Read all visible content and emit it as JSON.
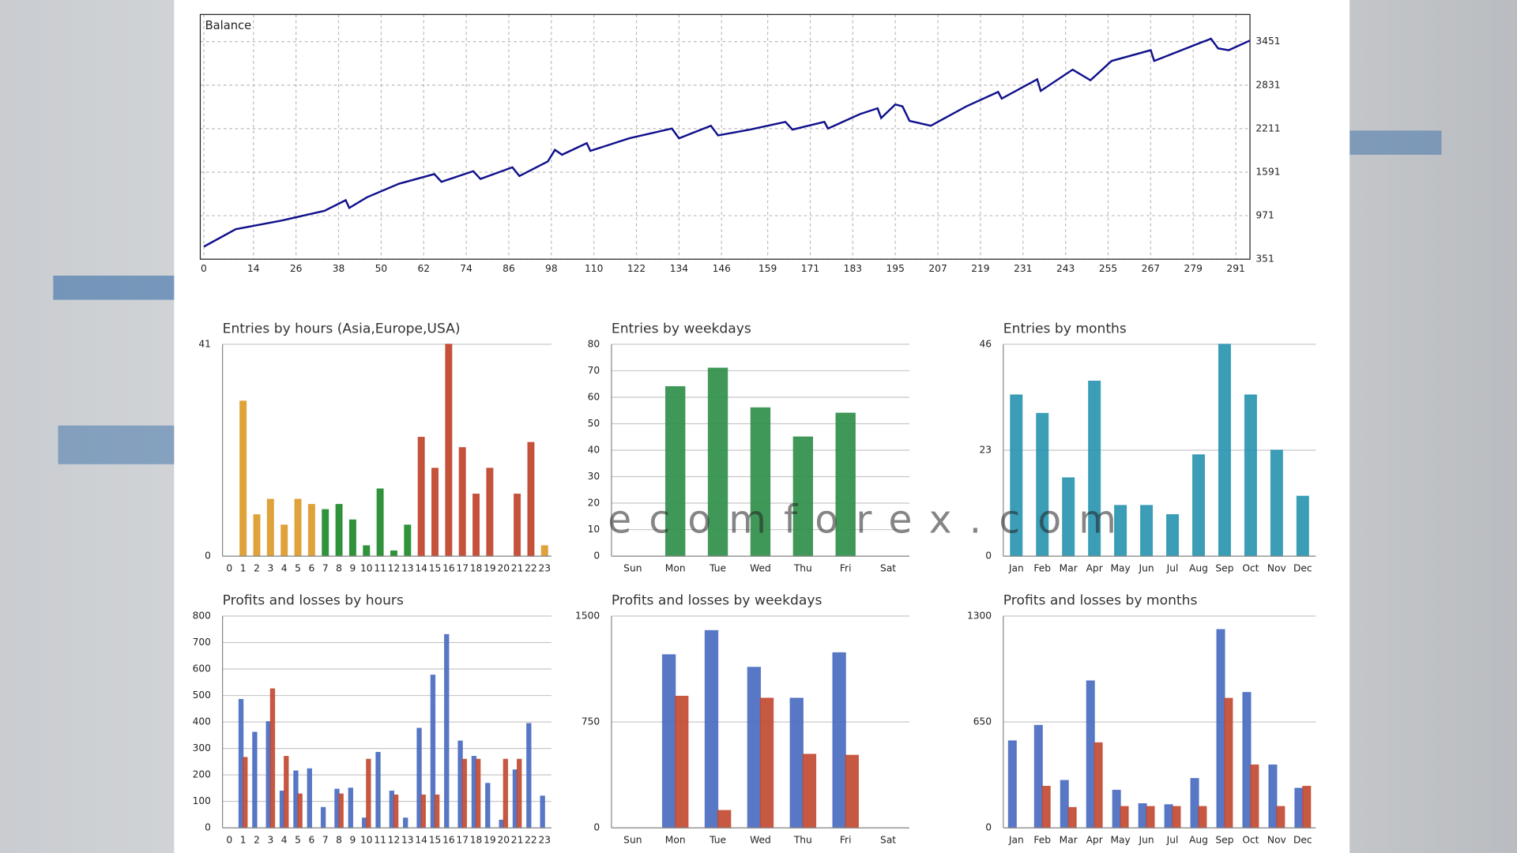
{
  "watermark": "ecomforex.com",
  "chart_data": [
    {
      "type": "line",
      "title": "Balance",
      "color": "#10108c",
      "grid": true,
      "y_axis_side": "right",
      "x": [
        0,
        9,
        22,
        34,
        40,
        41,
        46,
        55,
        65,
        67,
        76,
        78,
        87,
        89,
        97,
        99,
        101,
        108,
        109,
        120,
        132,
        134,
        143,
        145,
        154,
        164,
        166,
        175,
        176,
        185,
        190,
        191,
        195,
        197,
        199,
        205,
        215,
        224,
        225,
        235,
        236,
        245,
        250,
        256,
        267,
        268,
        284,
        286,
        289,
        295
      ],
      "values": [
        530,
        778,
        902,
        1040,
        1191,
        1081,
        1233,
        1426,
        1564,
        1453,
        1605,
        1494,
        1660,
        1536,
        1743,
        1908,
        1839,
        2005,
        1894,
        2074,
        2212,
        2074,
        2253,
        2115,
        2198,
        2308,
        2198,
        2308,
        2212,
        2418,
        2501,
        2363,
        2556,
        2528,
        2322,
        2253,
        2528,
        2735,
        2639,
        2914,
        2749,
        3052,
        2900,
        3176,
        3328,
        3176,
        3493,
        3355,
        3328,
        3466
      ],
      "xlim": [
        -1,
        295
      ],
      "xticks": [
        0,
        14,
        26,
        38,
        50,
        62,
        74,
        86,
        98,
        110,
        122,
        134,
        146,
        159,
        171,
        183,
        195,
        207,
        219,
        231,
        243,
        255,
        267,
        279,
        291
      ],
      "ylim": [
        351,
        3837
      ],
      "yticks": [
        351,
        971,
        1591,
        2211,
        2831,
        3451
      ]
    },
    {
      "type": "bar",
      "title": "Entries by hours (Asia,Europe,USA)",
      "grid": true,
      "categories": [
        "0",
        "1",
        "2",
        "3",
        "4",
        "5",
        "6",
        "7",
        "8",
        "9",
        "10",
        "11",
        "12",
        "13",
        "14",
        "15",
        "16",
        "17",
        "18",
        "19",
        "20",
        "21",
        "22",
        "23"
      ],
      "values": [
        0,
        30,
        8,
        11,
        6,
        11,
        10,
        9,
        10,
        7,
        2,
        13,
        1,
        6,
        23,
        17,
        41,
        21,
        12,
        17,
        0,
        12,
        22,
        2
      ],
      "colors": [
        "#dd9a2a",
        "#dd9a2a",
        "#dd9a2a",
        "#dd9a2a",
        "#dd9a2a",
        "#dd9a2a",
        "#dd9a2a",
        "#1e8a2a",
        "#1e8a2a",
        "#1e8a2a",
        "#1e8a2a",
        "#1e8a2a",
        "#1e8a2a",
        "#1e8a2a",
        "#c0442a",
        "#c0442a",
        "#c0442a",
        "#c0442a",
        "#c0442a",
        "#c0442a",
        "#c0442a",
        "#c0442a",
        "#c0442a",
        "#dd9a2a"
      ],
      "ylim": [
        0,
        41
      ],
      "yticks": [
        0,
        41
      ]
    },
    {
      "type": "bar",
      "title": "Entries by weekdays",
      "grid": true,
      "color": "#2f8f4a",
      "categories": [
        "Sun",
        "Mon",
        "Tue",
        "Wed",
        "Thu",
        "Fri",
        "Sat"
      ],
      "values": [
        0,
        64,
        71,
        56,
        45,
        54,
        0
      ],
      "ylim": [
        0,
        80
      ],
      "yticks": [
        0,
        10,
        20,
        30,
        40,
        50,
        60,
        70,
        80
      ]
    },
    {
      "type": "bar",
      "title": "Entries by months",
      "grid": true,
      "color": "#2a95b0",
      "categories": [
        "Jan",
        "Feb",
        "Mar",
        "Apr",
        "May",
        "Jun",
        "Jul",
        "Aug",
        "Sep",
        "Oct",
        "Nov",
        "Dec"
      ],
      "values": [
        35,
        31,
        17,
        38,
        11,
        11,
        9,
        22,
        46,
        35,
        23,
        13
      ],
      "ylim": [
        0,
        46
      ],
      "yticks": [
        0,
        23,
        46
      ]
    },
    {
      "type": "bar",
      "title": "Profits and losses by hours",
      "grid": true,
      "categories": [
        "0",
        "1",
        "2",
        "3",
        "4",
        "5",
        "6",
        "7",
        "8",
        "9",
        "10",
        "11",
        "12",
        "13",
        "14",
        "15",
        "16",
        "17",
        "18",
        "19",
        "20",
        "21",
        "22",
        "23"
      ],
      "series": [
        {
          "color": "#4a6cc0",
          "values": [
            0,
            485,
            361,
            401,
            139,
            215,
            223,
            77,
            146,
            150,
            37,
            285,
            139,
            37,
            376,
            577,
            730,
            328,
            270,
            168,
            29,
            219,
            394,
            120
          ]
        },
        {
          "color": "#c24a32",
          "values": [
            0,
            266,
            0,
            525,
            270,
            128,
            0,
            0,
            128,
            0,
            259,
            0,
            124,
            0,
            124,
            124,
            0,
            259,
            259,
            0,
            259,
            259,
            0,
            0
          ]
        }
      ],
      "ylim": [
        0,
        800
      ],
      "yticks": [
        0,
        100,
        200,
        300,
        400,
        500,
        600,
        700,
        800
      ]
    },
    {
      "type": "bar",
      "title": "Profits and losses by weekdays",
      "grid": true,
      "categories": [
        "Sun",
        "Mon",
        "Tue",
        "Wed",
        "Thu",
        "Fri",
        "Sat"
      ],
      "series": [
        {
          "color": "#4a6cc0",
          "values": [
            0,
            1226,
            1397,
            1137,
            918,
            1240,
            0
          ]
        },
        {
          "color": "#c24a32",
          "values": [
            0,
            932,
            123,
            918,
            521,
            514,
            0
          ]
        }
      ],
      "ylim": [
        0,
        1500
      ],
      "yticks": [
        0,
        750,
        1500
      ]
    },
    {
      "type": "bar",
      "title": "Profits and losses by months",
      "grid": true,
      "categories": [
        "Jan",
        "Feb",
        "Mar",
        "Apr",
        "May",
        "Jun",
        "Jul",
        "Aug",
        "Sep",
        "Oct",
        "Nov",
        "Dec"
      ],
      "series": [
        {
          "color": "#4a6cc0",
          "values": [
            534,
            629,
            291,
            902,
            231,
            148,
            142,
            303,
            1217,
            831,
            386,
            243
          ]
        },
        {
          "color": "#c24a32",
          "values": [
            0,
            255,
            125,
            522,
            131,
            131,
            131,
            131,
            795,
            386,
            131,
            255
          ]
        }
      ],
      "ylim": [
        0,
        1300
      ],
      "yticks": [
        0,
        650,
        1300
      ]
    }
  ]
}
